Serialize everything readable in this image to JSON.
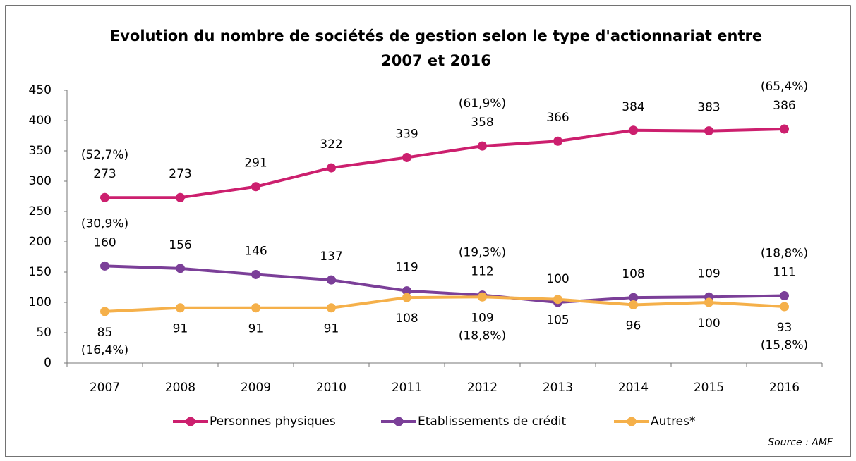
{
  "chart_data": {
    "type": "line",
    "title": [
      "Evolution du nombre de sociétés de gestion selon le type d'actionnariat entre",
      "2007  et 2016"
    ],
    "categories": [
      "2007",
      "2008",
      "2009",
      "2010",
      "2011",
      "2012",
      "2013",
      "2014",
      "2015",
      "2016"
    ],
    "series": [
      {
        "name": "Personnes physiques",
        "color": "#cc1f6e",
        "values": [
          273,
          273,
          291,
          322,
          339,
          358,
          366,
          384,
          383,
          386
        ],
        "pct_labels": [
          "(52,7%)",
          null,
          null,
          null,
          null,
          "(61,9%)",
          null,
          null,
          null,
          "(65,4%)"
        ]
      },
      {
        "name": "Etablissements de crédit",
        "color": "#7b3f98",
        "values": [
          160,
          156,
          146,
          137,
          119,
          112,
          100,
          108,
          109,
          111
        ],
        "pct_labels": [
          "(30,9%)",
          null,
          null,
          null,
          null,
          "(19,3%)",
          null,
          null,
          null,
          "(18,8%)"
        ]
      },
      {
        "name": "Autres*",
        "color": "#f5b04a",
        "values": [
          85,
          91,
          91,
          91,
          108,
          109,
          105,
          96,
          100,
          93
        ],
        "pct_labels": [
          "(16,4%)",
          null,
          null,
          null,
          null,
          "(18,8%)",
          null,
          null,
          null,
          "(15,8%)"
        ]
      }
    ],
    "ylim": [
      0,
      450
    ],
    "yticks": [
      0,
      50,
      100,
      150,
      200,
      250,
      300,
      350,
      400,
      450
    ],
    "grid": false,
    "legend": "bottom",
    "source": "Source : AMF"
  }
}
